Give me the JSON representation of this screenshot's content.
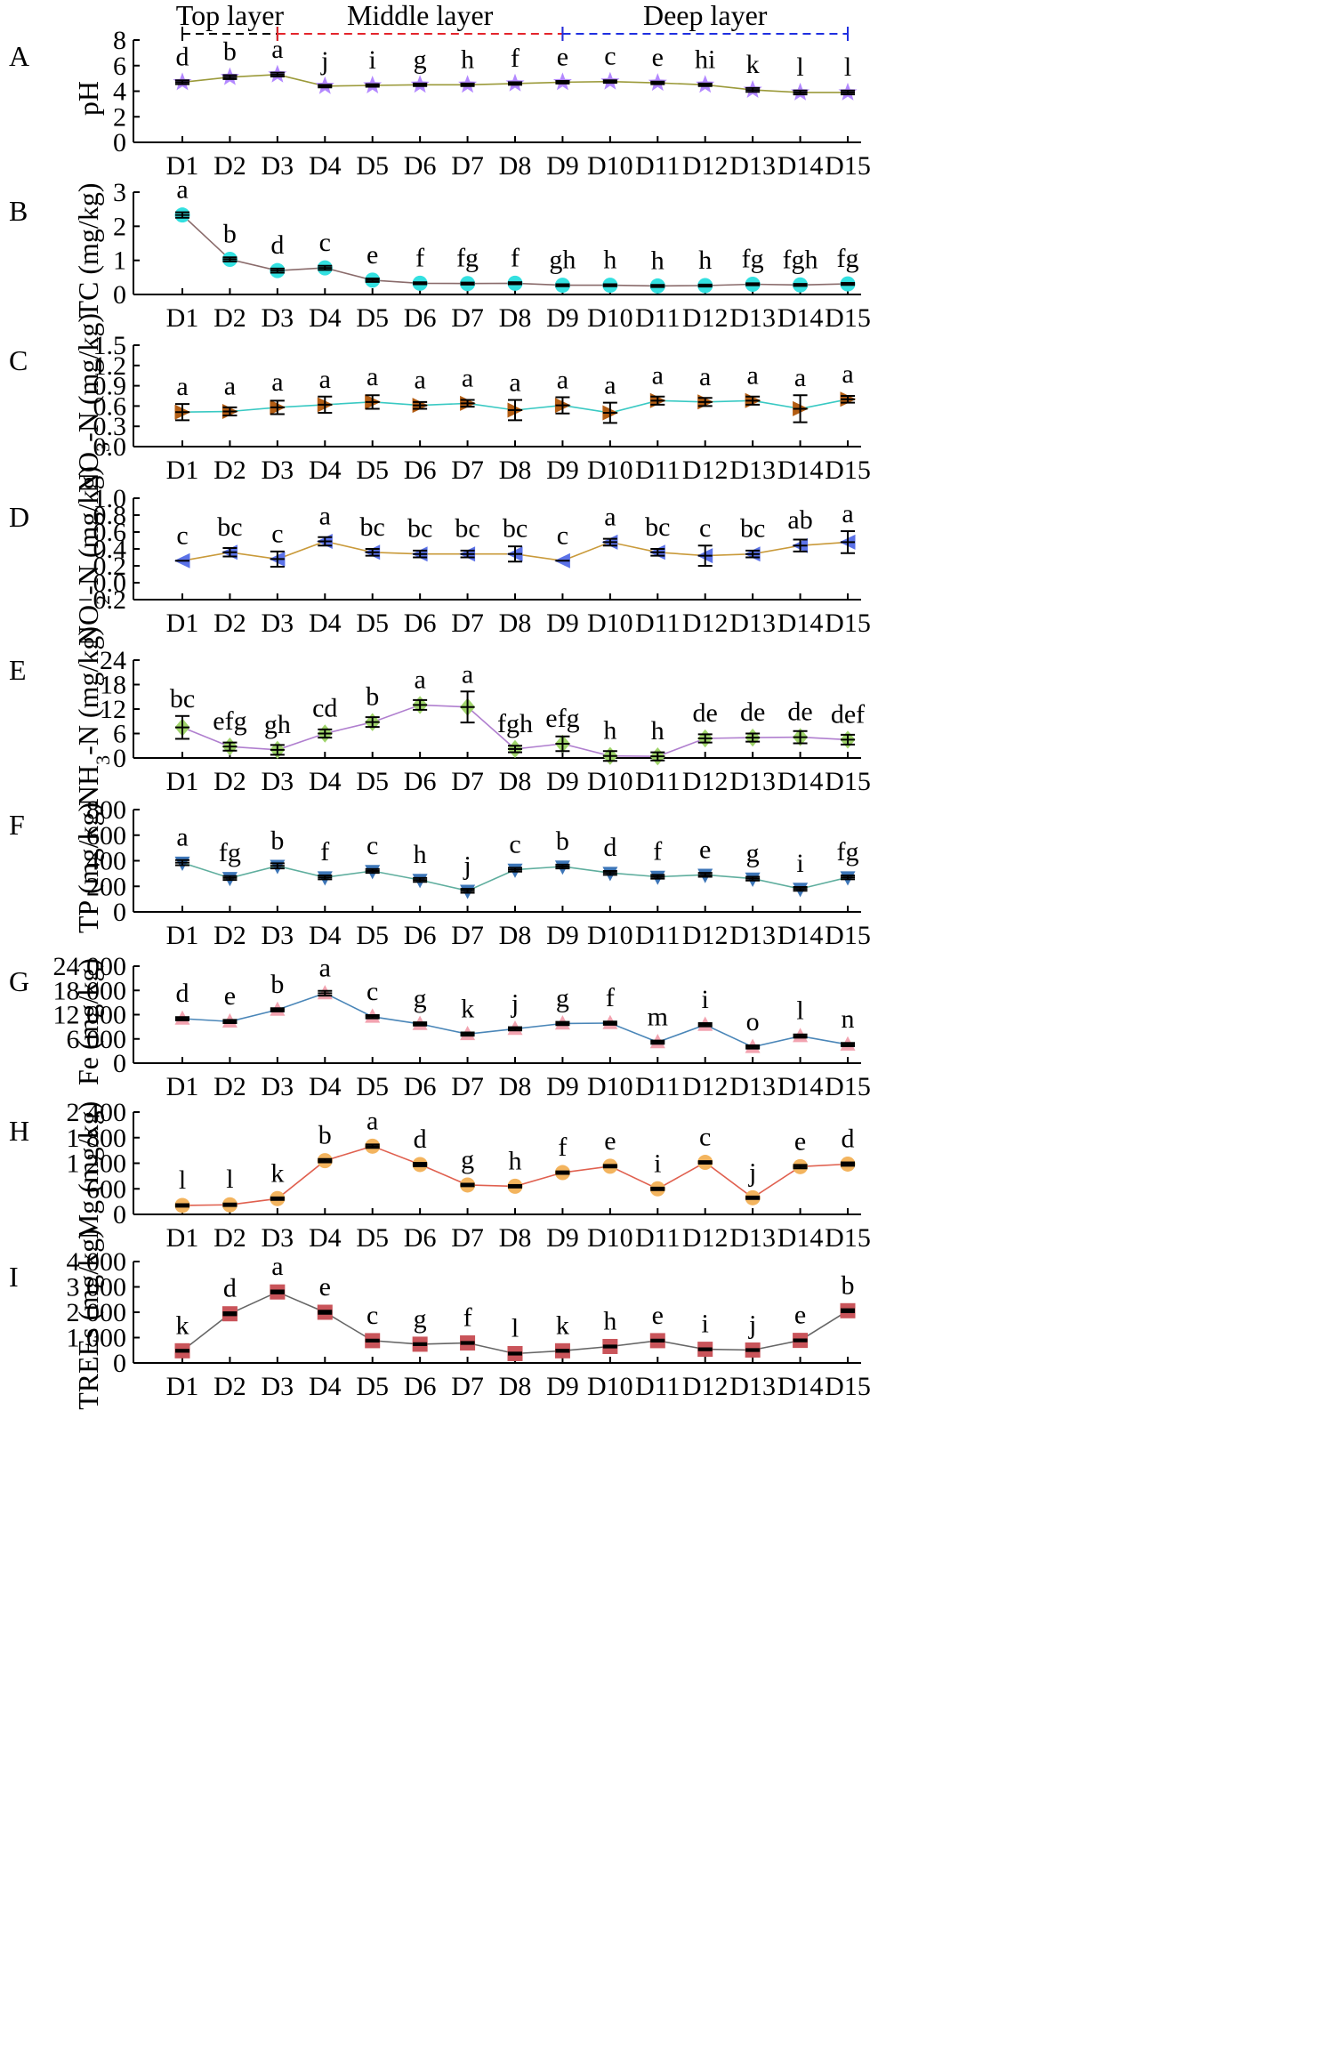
{
  "layers": [
    {
      "label": "Top layer",
      "color": "#000000",
      "from": "D1",
      "to": "D3"
    },
    {
      "label": "Middle layer",
      "color": "#e3242b",
      "from": "D3",
      "to": "D9"
    },
    {
      "label": "Deep layer",
      "color": "#1f2fe0",
      "from": "D9",
      "to": "D15"
    }
  ],
  "chart_data": [
    {
      "panel": "A",
      "type": "line",
      "ylabel": "pH",
      "categories": [
        "D1",
        "D2",
        "D3",
        "D4",
        "D5",
        "D6",
        "D7",
        "D8",
        "D9",
        "D10",
        "D11",
        "D12",
        "D13",
        "D14",
        "D15"
      ],
      "ylim": [
        0,
        8
      ],
      "yticks": [
        "0",
        "2",
        "4",
        "6",
        "8"
      ],
      "line_color": "#9b9a3a",
      "marker_color": "#b388ff",
      "marker": "star",
      "values": [
        4.7,
        5.1,
        5.3,
        4.4,
        4.45,
        4.5,
        4.5,
        4.6,
        4.7,
        4.75,
        4.65,
        4.5,
        4.1,
        3.9,
        3.9
      ],
      "errors": [
        0.15,
        0.15,
        0.15,
        0.1,
        0.1,
        0.1,
        0.1,
        0.1,
        0.1,
        0.1,
        0.1,
        0.1,
        0.15,
        0.15,
        0.15
      ],
      "letters": [
        "d",
        "b",
        "a",
        "j",
        "i",
        "g",
        "h",
        "f",
        "e",
        "c",
        "e",
        "hi",
        "k",
        "l",
        "l"
      ]
    },
    {
      "panel": "B",
      "type": "line",
      "ylabel": "TC (mg/kg)",
      "categories": [
        "D1",
        "D2",
        "D3",
        "D4",
        "D5",
        "D6",
        "D7",
        "D8",
        "D9",
        "D10",
        "D11",
        "D12",
        "D13",
        "D14",
        "D15"
      ],
      "ylim": [
        0,
        3
      ],
      "yticks": [
        "0",
        "1",
        "2",
        "3"
      ],
      "line_color": "#8a6b6b",
      "marker_color": "#33e0e0",
      "marker": "circle",
      "values": [
        2.33,
        1.03,
        0.7,
        0.78,
        0.42,
        0.33,
        0.32,
        0.33,
        0.27,
        0.27,
        0.25,
        0.26,
        0.3,
        0.28,
        0.31
      ],
      "errors": [
        0.08,
        0.06,
        0.06,
        0.06,
        0.05,
        0.03,
        0.03,
        0.03,
        0.03,
        0.03,
        0.03,
        0.03,
        0.03,
        0.03,
        0.03
      ],
      "letters": [
        "a",
        "b",
        "d",
        "c",
        "e",
        "f",
        "fg",
        "f",
        "gh",
        "h",
        "h",
        "h",
        "fg",
        "fgh",
        "fg"
      ]
    },
    {
      "panel": "C",
      "type": "line",
      "ylabel": "NO3-N (mg/kg)",
      "categories": [
        "D1",
        "D2",
        "D3",
        "D4",
        "D5",
        "D6",
        "D7",
        "D8",
        "D9",
        "D10",
        "D11",
        "D12",
        "D13",
        "D14",
        "D15"
      ],
      "ylim": [
        0,
        1.5
      ],
      "yticks": [
        "0.0",
        "0.3",
        "0.6",
        "0.9",
        "1.2",
        "1.5"
      ],
      "line_color": "#39c9c3",
      "marker_color": "#b35d13",
      "marker": "triangle-right",
      "values": [
        0.51,
        0.52,
        0.58,
        0.62,
        0.66,
        0.61,
        0.64,
        0.54,
        0.61,
        0.5,
        0.68,
        0.66,
        0.68,
        0.56,
        0.7
      ],
      "errors": [
        0.12,
        0.06,
        0.1,
        0.12,
        0.1,
        0.05,
        0.05,
        0.15,
        0.12,
        0.15,
        0.06,
        0.06,
        0.06,
        0.2,
        0.05
      ],
      "letters": [
        "a",
        "a",
        "a",
        "a",
        "a",
        "a",
        "a",
        "a",
        "a",
        "a",
        "a",
        "a",
        "a",
        "a",
        "a"
      ]
    },
    {
      "panel": "D",
      "type": "line",
      "ylabel": "NO2-N (mg/kg)",
      "categories": [
        "D1",
        "D2",
        "D3",
        "D4",
        "D5",
        "D6",
        "D7",
        "D8",
        "D9",
        "D10",
        "D11",
        "D12",
        "D13",
        "D14",
        "D15"
      ],
      "ylim": [
        -0.2,
        1.0
      ],
      "yticks": [
        "−0.2",
        "0.0",
        "0.2",
        "0.4",
        "0.6",
        "0.8",
        "1.0"
      ],
      "line_color": "#c99a3a",
      "marker_color": "#5b72e8",
      "marker": "triangle-left",
      "values": [
        0.26,
        0.36,
        0.28,
        0.49,
        0.36,
        0.34,
        0.34,
        0.34,
        0.26,
        0.48,
        0.36,
        0.32,
        0.34,
        0.44,
        0.48
      ],
      "errors": [
        0.0,
        0.05,
        0.09,
        0.05,
        0.04,
        0.04,
        0.04,
        0.09,
        0.0,
        0.04,
        0.04,
        0.12,
        0.04,
        0.07,
        0.13
      ],
      "letters": [
        "c",
        "bc",
        "c",
        "a",
        "bc",
        "bc",
        "bc",
        "bc",
        "c",
        "a",
        "bc",
        "c",
        "bc",
        "ab",
        "a"
      ]
    },
    {
      "panel": "E",
      "type": "line",
      "ylabel": "NH3-N (mg/kg)",
      "categories": [
        "D1",
        "D2",
        "D3",
        "D4",
        "D5",
        "D6",
        "D7",
        "D8",
        "D9",
        "D10",
        "D11",
        "D12",
        "D13",
        "D14",
        "D15"
      ],
      "ylim": [
        0,
        24
      ],
      "yticks": [
        "0",
        "6",
        "12",
        "18",
        "24"
      ],
      "line_color": "#b07fcf",
      "marker_color": "#9fd46a",
      "marker": "diamond",
      "values": [
        7.5,
        2.8,
        2.0,
        6.0,
        8.8,
        13.0,
        12.5,
        2.2,
        3.5,
        0.5,
        0.4,
        4.8,
        5.0,
        5.1,
        4.5
      ],
      "errors": [
        2.8,
        1.0,
        1.2,
        1.0,
        1.2,
        1.2,
        3.8,
        0.8,
        1.8,
        1.2,
        1.0,
        1.0,
        1.0,
        1.5,
        1.2
      ],
      "letters": [
        "bc",
        "efg",
        "gh",
        "cd",
        "b",
        "a",
        "a",
        "fgh",
        "efg",
        "h",
        "h",
        "de",
        "de",
        "de",
        "def"
      ]
    },
    {
      "panel": "F",
      "type": "line",
      "ylabel": "TP (mg/kg)",
      "categories": [
        "D1",
        "D2",
        "D3",
        "D4",
        "D5",
        "D6",
        "D7",
        "D8",
        "D9",
        "D10",
        "D11",
        "D12",
        "D13",
        "D14",
        "D15"
      ],
      "ylim": [
        0,
        800
      ],
      "yticks": [
        "0",
        "200",
        "400",
        "600",
        "800"
      ],
      "line_color": "#5fae9e",
      "marker_color": "#3d76b8",
      "marker": "triangle-down",
      "values": [
        385,
        265,
        360,
        270,
        320,
        250,
        165,
        330,
        355,
        305,
        275,
        290,
        260,
        180,
        270
      ],
      "errors": [
        20,
        15,
        20,
        15,
        15,
        15,
        15,
        15,
        15,
        15,
        15,
        15,
        15,
        15,
        15
      ],
      "letters": [
        "a",
        "fg",
        "b",
        "f",
        "c",
        "h",
        "j",
        "c",
        "b",
        "d",
        "f",
        "e",
        "g",
        "i",
        "fg"
      ]
    },
    {
      "panel": "G",
      "type": "line",
      "ylabel": "Fe (mg/kg)",
      "categories": [
        "D1",
        "D2",
        "D3",
        "D4",
        "D5",
        "D6",
        "D7",
        "D8",
        "D9",
        "D10",
        "D11",
        "D12",
        "D13",
        "D14",
        "D15"
      ],
      "ylim": [
        0,
        24000
      ],
      "yticks": [
        "0",
        "6 000",
        "12 000",
        "18 000",
        "24 000"
      ],
      "line_color": "#4a86b8",
      "marker_color": "#f2a3b0",
      "marker": "triangle-up",
      "values": [
        11000,
        10300,
        13200,
        17300,
        11500,
        9700,
        7200,
        8500,
        9800,
        9900,
        5200,
        9500,
        4000,
        6700,
        4600
      ],
      "errors": [
        400,
        400,
        400,
        600,
        400,
        400,
        400,
        400,
        400,
        400,
        400,
        400,
        400,
        400,
        400
      ],
      "letters": [
        "d",
        "e",
        "b",
        "a",
        "c",
        "g",
        "k",
        "j",
        "g",
        "f",
        "m",
        "i",
        "o",
        "l",
        "n"
      ]
    },
    {
      "panel": "H",
      "type": "line",
      "ylabel": "Mg (mg/kg)",
      "categories": [
        "D1",
        "D2",
        "D3",
        "D4",
        "D5",
        "D6",
        "D7",
        "D8",
        "D9",
        "D10",
        "D11",
        "D12",
        "D13",
        "D14",
        "D15"
      ],
      "ylim": [
        0,
        2400
      ],
      "yticks": [
        "0",
        "600",
        "1 200",
        "1 800",
        "2 400"
      ],
      "line_color": "#e0604f",
      "marker_color": "#f3b45e",
      "marker": "circle",
      "values": [
        210,
        225,
        370,
        1260,
        1600,
        1170,
        690,
        660,
        980,
        1130,
        600,
        1220,
        390,
        1120,
        1180
      ],
      "errors": [
        30,
        30,
        30,
        40,
        40,
        40,
        30,
        30,
        30,
        30,
        30,
        30,
        30,
        40,
        40
      ],
      "letters": [
        "l",
        "l",
        "k",
        "b",
        "a",
        "d",
        "g",
        "h",
        "f",
        "e",
        "i",
        "c",
        "j",
        "e",
        "d"
      ]
    },
    {
      "panel": "I",
      "type": "line",
      "ylabel": "TREEs (mg/kg)",
      "categories": [
        "D1",
        "D2",
        "D3",
        "D4",
        "D5",
        "D6",
        "D7",
        "D8",
        "D9",
        "D10",
        "D11",
        "D12",
        "D13",
        "D14",
        "D15"
      ],
      "ylim": [
        0,
        4000
      ],
      "yticks": [
        "0",
        "1 000",
        "2 000",
        "3 000",
        "4 000"
      ],
      "line_color": "#666666",
      "marker_color": "#c9545a",
      "marker": "square",
      "values": [
        480,
        1940,
        2800,
        2000,
        880,
        740,
        790,
        370,
        480,
        650,
        880,
        540,
        510,
        890,
        2060
      ],
      "errors": [
        40,
        60,
        60,
        60,
        40,
        40,
        40,
        40,
        40,
        40,
        40,
        40,
        40,
        40,
        60
      ],
      "letters": [
        "k",
        "d",
        "a",
        "e",
        "c",
        "g",
        "f",
        "l",
        "k",
        "h",
        "e",
        "i",
        "j",
        "e",
        "b"
      ]
    }
  ]
}
